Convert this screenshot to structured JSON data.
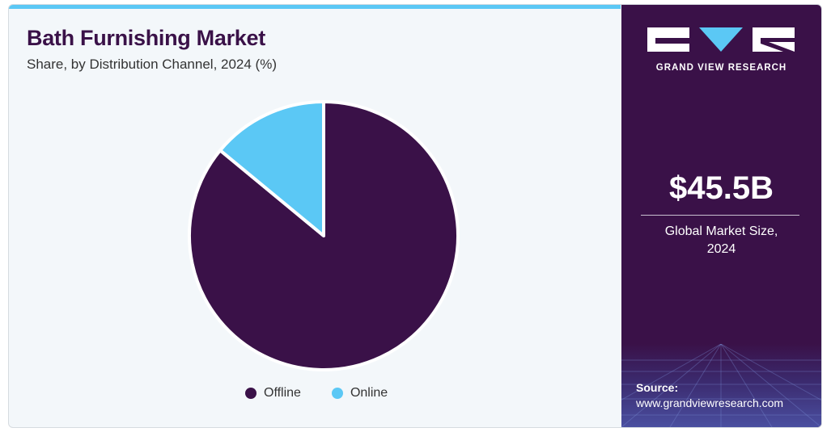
{
  "header": {
    "title": "Bath Furnishing Market",
    "subtitle": "Share, by Distribution Channel, 2024 (%)"
  },
  "chart_data": {
    "type": "pie",
    "title": "Bath Furnishing Market",
    "subtitle": "Share, by Distribution Channel, 2024 (%)",
    "categories": [
      "Offline",
      "Online"
    ],
    "values": [
      86,
      14
    ],
    "colors": [
      "#3a1148",
      "#5bc8f5"
    ],
    "start_angle_deg": 0,
    "legend_position": "bottom"
  },
  "legend": {
    "items": [
      {
        "label": "Offline",
        "color": "#3a1148"
      },
      {
        "label": "Online",
        "color": "#5bc8f5"
      }
    ]
  },
  "sidebar": {
    "brand": "GRAND VIEW RESEARCH",
    "market_value": "$45.5B",
    "market_label_line1": "Global Market Size,",
    "market_label_line2": "2024",
    "source_label": "Source:",
    "source_url": "www.grandviewresearch.com"
  },
  "colors": {
    "brand_purple": "#3a1148",
    "accent_blue": "#5bc8f5",
    "background": "#f3f7fa"
  },
  "icons": {
    "logo": "grand-view-research-logo"
  }
}
